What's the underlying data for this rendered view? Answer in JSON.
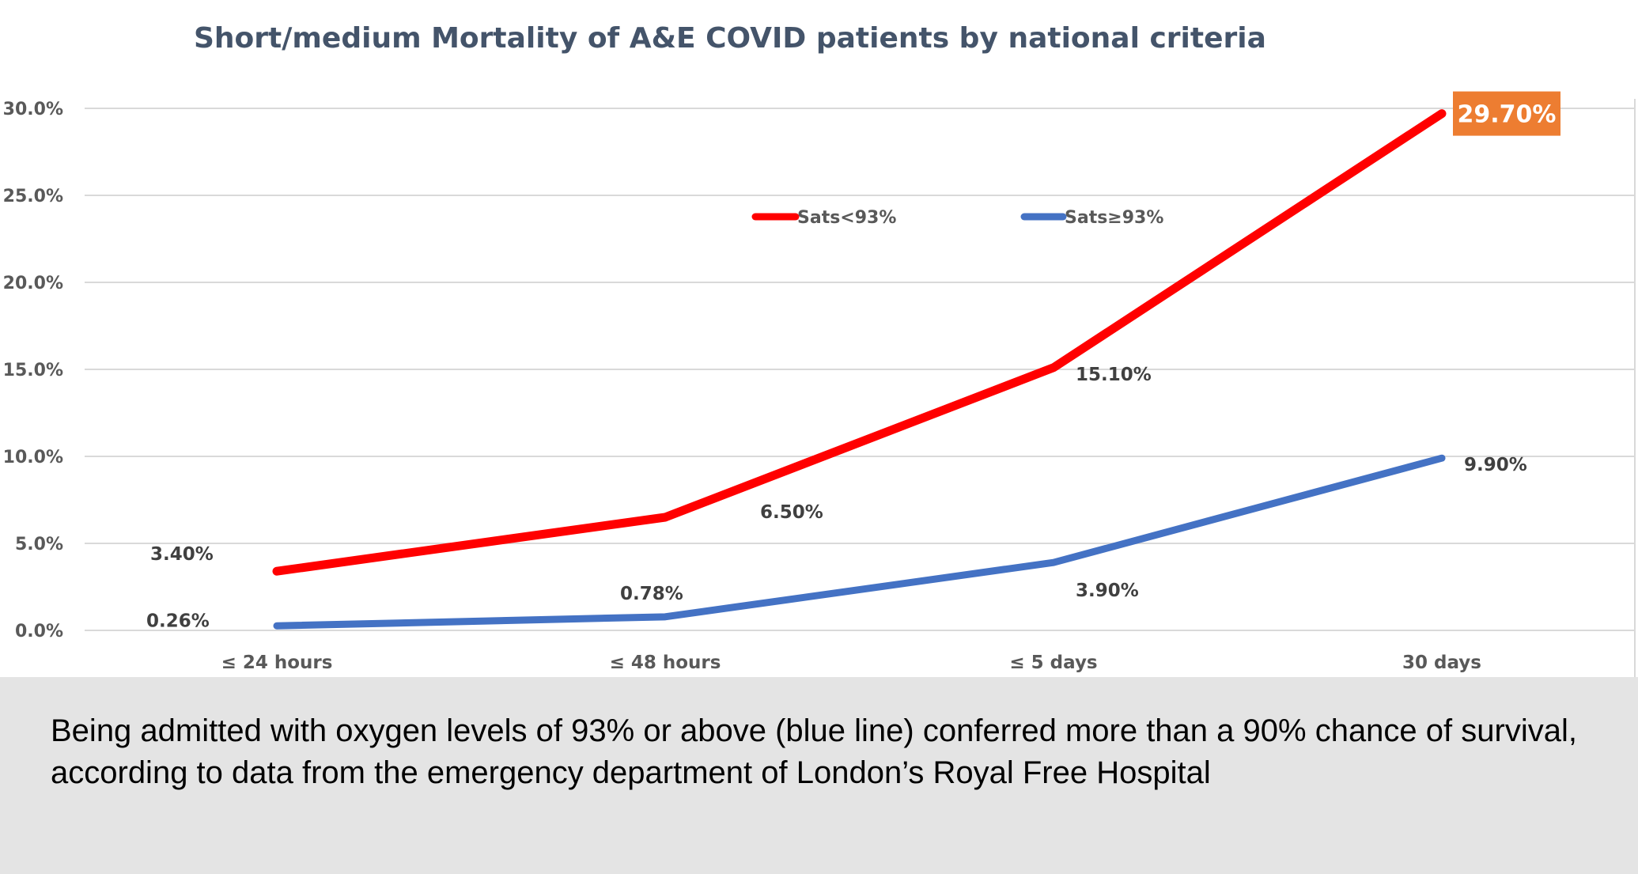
{
  "chart_data": {
    "type": "line",
    "title": "Short/medium Mortality of A&E COVID patients by national criteria",
    "xlabel": "",
    "ylabel": "",
    "categories": [
      "≤ 24 hours",
      "≤ 48 hours",
      "≤ 5 days",
      "30 days"
    ],
    "yticks": [
      "0.0%",
      "5.0%",
      "10.0%",
      "15.0%",
      "20.0%",
      "25.0%",
      "30.0%"
    ],
    "ylim": [
      0,
      30
    ],
    "grid": true,
    "legend_position": "top-center",
    "series": [
      {
        "name": "Sats<93%",
        "color": "#ff0000",
        "values": [
          3.4,
          6.5,
          15.1,
          29.7
        ],
        "labels": [
          "3.40%",
          "6.50%",
          "15.10%",
          "29.70%"
        ]
      },
      {
        "name": "Sats≥93%",
        "color": "#4472c4",
        "values": [
          0.26,
          0.78,
          3.9,
          9.9
        ],
        "labels": [
          "0.26%",
          "0.78%",
          "3.90%",
          "9.90%"
        ]
      }
    ],
    "highlight": {
      "series": 0,
      "point": 3,
      "label": "29.70%",
      "color": "#ed7d31"
    }
  },
  "caption": {
    "text": "Being admitted with oxygen levels of 93% or above (blue line) conferred more than a 90% chance of survival, according to data from the emergency department of London’s Royal Free Hospital"
  }
}
